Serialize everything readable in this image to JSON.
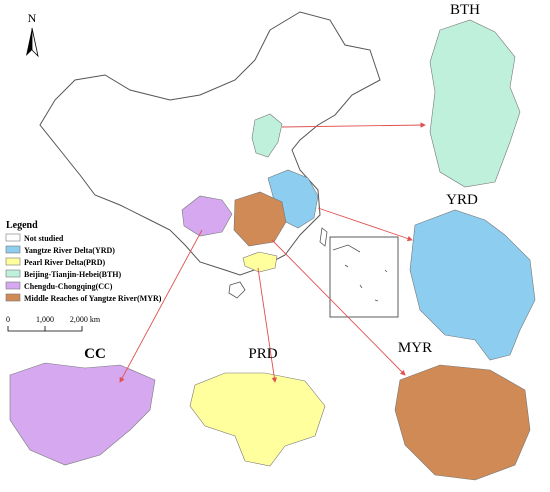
{
  "north_arrow": "N",
  "insets": {
    "bth": "BTH",
    "yrd": "YRD",
    "cc": "CC",
    "prd": "PRD",
    "myr": "MYR"
  },
  "legend": {
    "title": "Legend",
    "items": [
      "Not studied",
      "Yangtze River Delta(YRD)",
      "Pearl River Delta(PRD)",
      "Beijing-Tianjin-Hebei(BTH)",
      "Chengdu-Chongqing(CC)",
      "Middle Reaches of Yangtze River(MYR)"
    ]
  },
  "scale_bar": {
    "labels": [
      "0",
      "1,000",
      "2,000 km"
    ]
  }
}
